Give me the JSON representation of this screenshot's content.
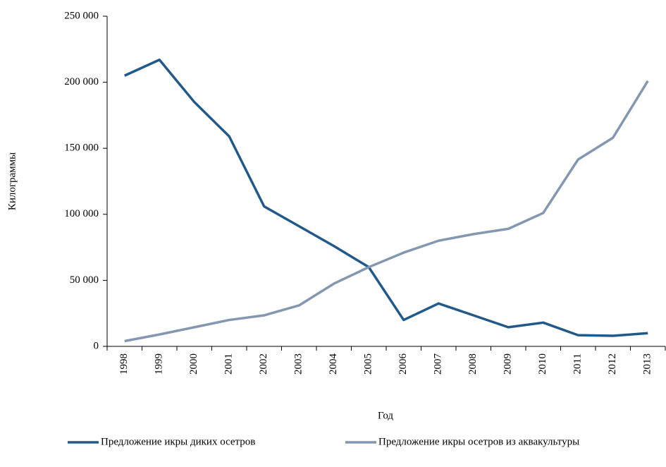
{
  "chart_data": {
    "type": "line",
    "x_label": "Год",
    "y_label": "Килограммы",
    "categories": [
      "1998",
      "1999",
      "2000",
      "2001",
      "2002",
      "2003",
      "2004",
      "2005",
      "2006",
      "2007",
      "2008",
      "2009",
      "2010",
      "2011",
      "2012",
      "2013"
    ],
    "series": [
      {
        "name": "Предложение икры диких осетров",
        "color": "#215a8a",
        "values": [
          205000,
          217000,
          185000,
          159000,
          106000,
          91000,
          76000,
          60000,
          20000,
          32500,
          23500,
          14500,
          18000,
          8500,
          8000,
          10000
        ]
      },
      {
        "name": "Предложение икры осетров из аквакультуры",
        "color": "#8497b0",
        "values": [
          4000,
          9000,
          14500,
          20000,
          23500,
          31000,
          47500,
          60000,
          71000,
          80000,
          85000,
          89000,
          101000,
          141500,
          158000,
          201000
        ]
      }
    ],
    "ylim": [
      0,
      250000
    ],
    "yticks": [
      0,
      {
        "value": 50000,
        "label": "50 000"
      },
      {
        "value": 100000,
        "label": "100 000"
      },
      {
        "value": 150000,
        "label": "150 000"
      },
      {
        "value": 200000,
        "label": "200 000"
      },
      {
        "value": 250000,
        "label": "250 000"
      }
    ],
    "grid": false,
    "legend": "bottom"
  }
}
